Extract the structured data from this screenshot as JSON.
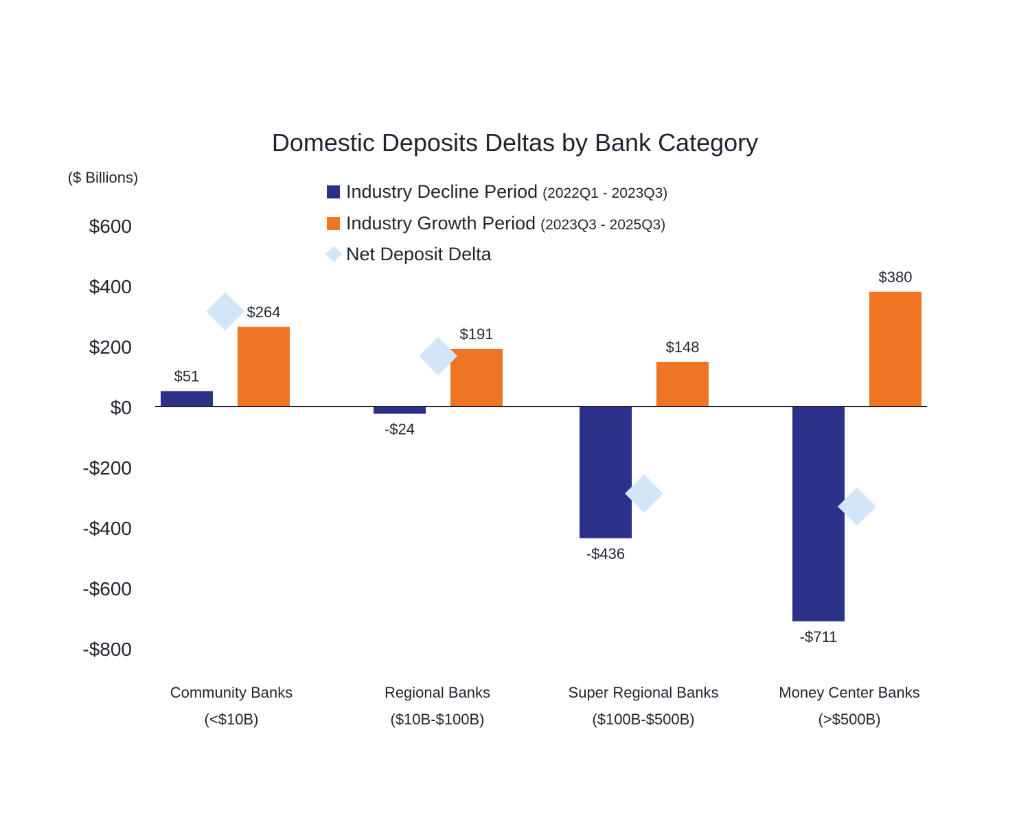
{
  "chart_data": {
    "type": "bar",
    "title": "Domestic Deposits Deltas by Bank Category",
    "ylabel": "($ Billions)",
    "ylim": [
      -800,
      600
    ],
    "yticks": [
      600,
      400,
      200,
      0,
      -200,
      -400,
      -600,
      -800
    ],
    "ytick_labels": [
      "$600",
      "$400",
      "$200",
      "$0",
      "-$200",
      "-$400",
      "-$600",
      "-$800"
    ],
    "categories": [
      {
        "line1": "Community Banks",
        "line2": "(<$10B)"
      },
      {
        "line1": "Regional Banks",
        "line2": "($10B-$100B)"
      },
      {
        "line1": "Super Regional Banks",
        "line2": "($100B-$500B)"
      },
      {
        "line1": "Money Center Banks",
        "line2": "(>$500B)"
      }
    ],
    "series": [
      {
        "name": "Industry Decline Period",
        "period": "(2022Q1 - 2023Q3)",
        "type": "bar",
        "color": "#2b3189",
        "values": [
          51,
          -24,
          -436,
          -711
        ],
        "labels": [
          "$51",
          "-$24",
          "-$436",
          "-$711"
        ]
      },
      {
        "name": "Industry Growth Period",
        "period": "(2023Q3 - 2025Q3)",
        "type": "bar",
        "color": "#ef7423",
        "values": [
          264,
          191,
          148,
          380
        ],
        "labels": [
          "$264",
          "$191",
          "$148",
          "$380"
        ]
      },
      {
        "name": "Net Deposit Delta",
        "period": "",
        "type": "marker",
        "marker": "diamond",
        "color": "#d3e6f8",
        "values": [
          315,
          167,
          -288,
          -331
        ]
      }
    ],
    "legend": "top-center",
    "grid": false
  }
}
